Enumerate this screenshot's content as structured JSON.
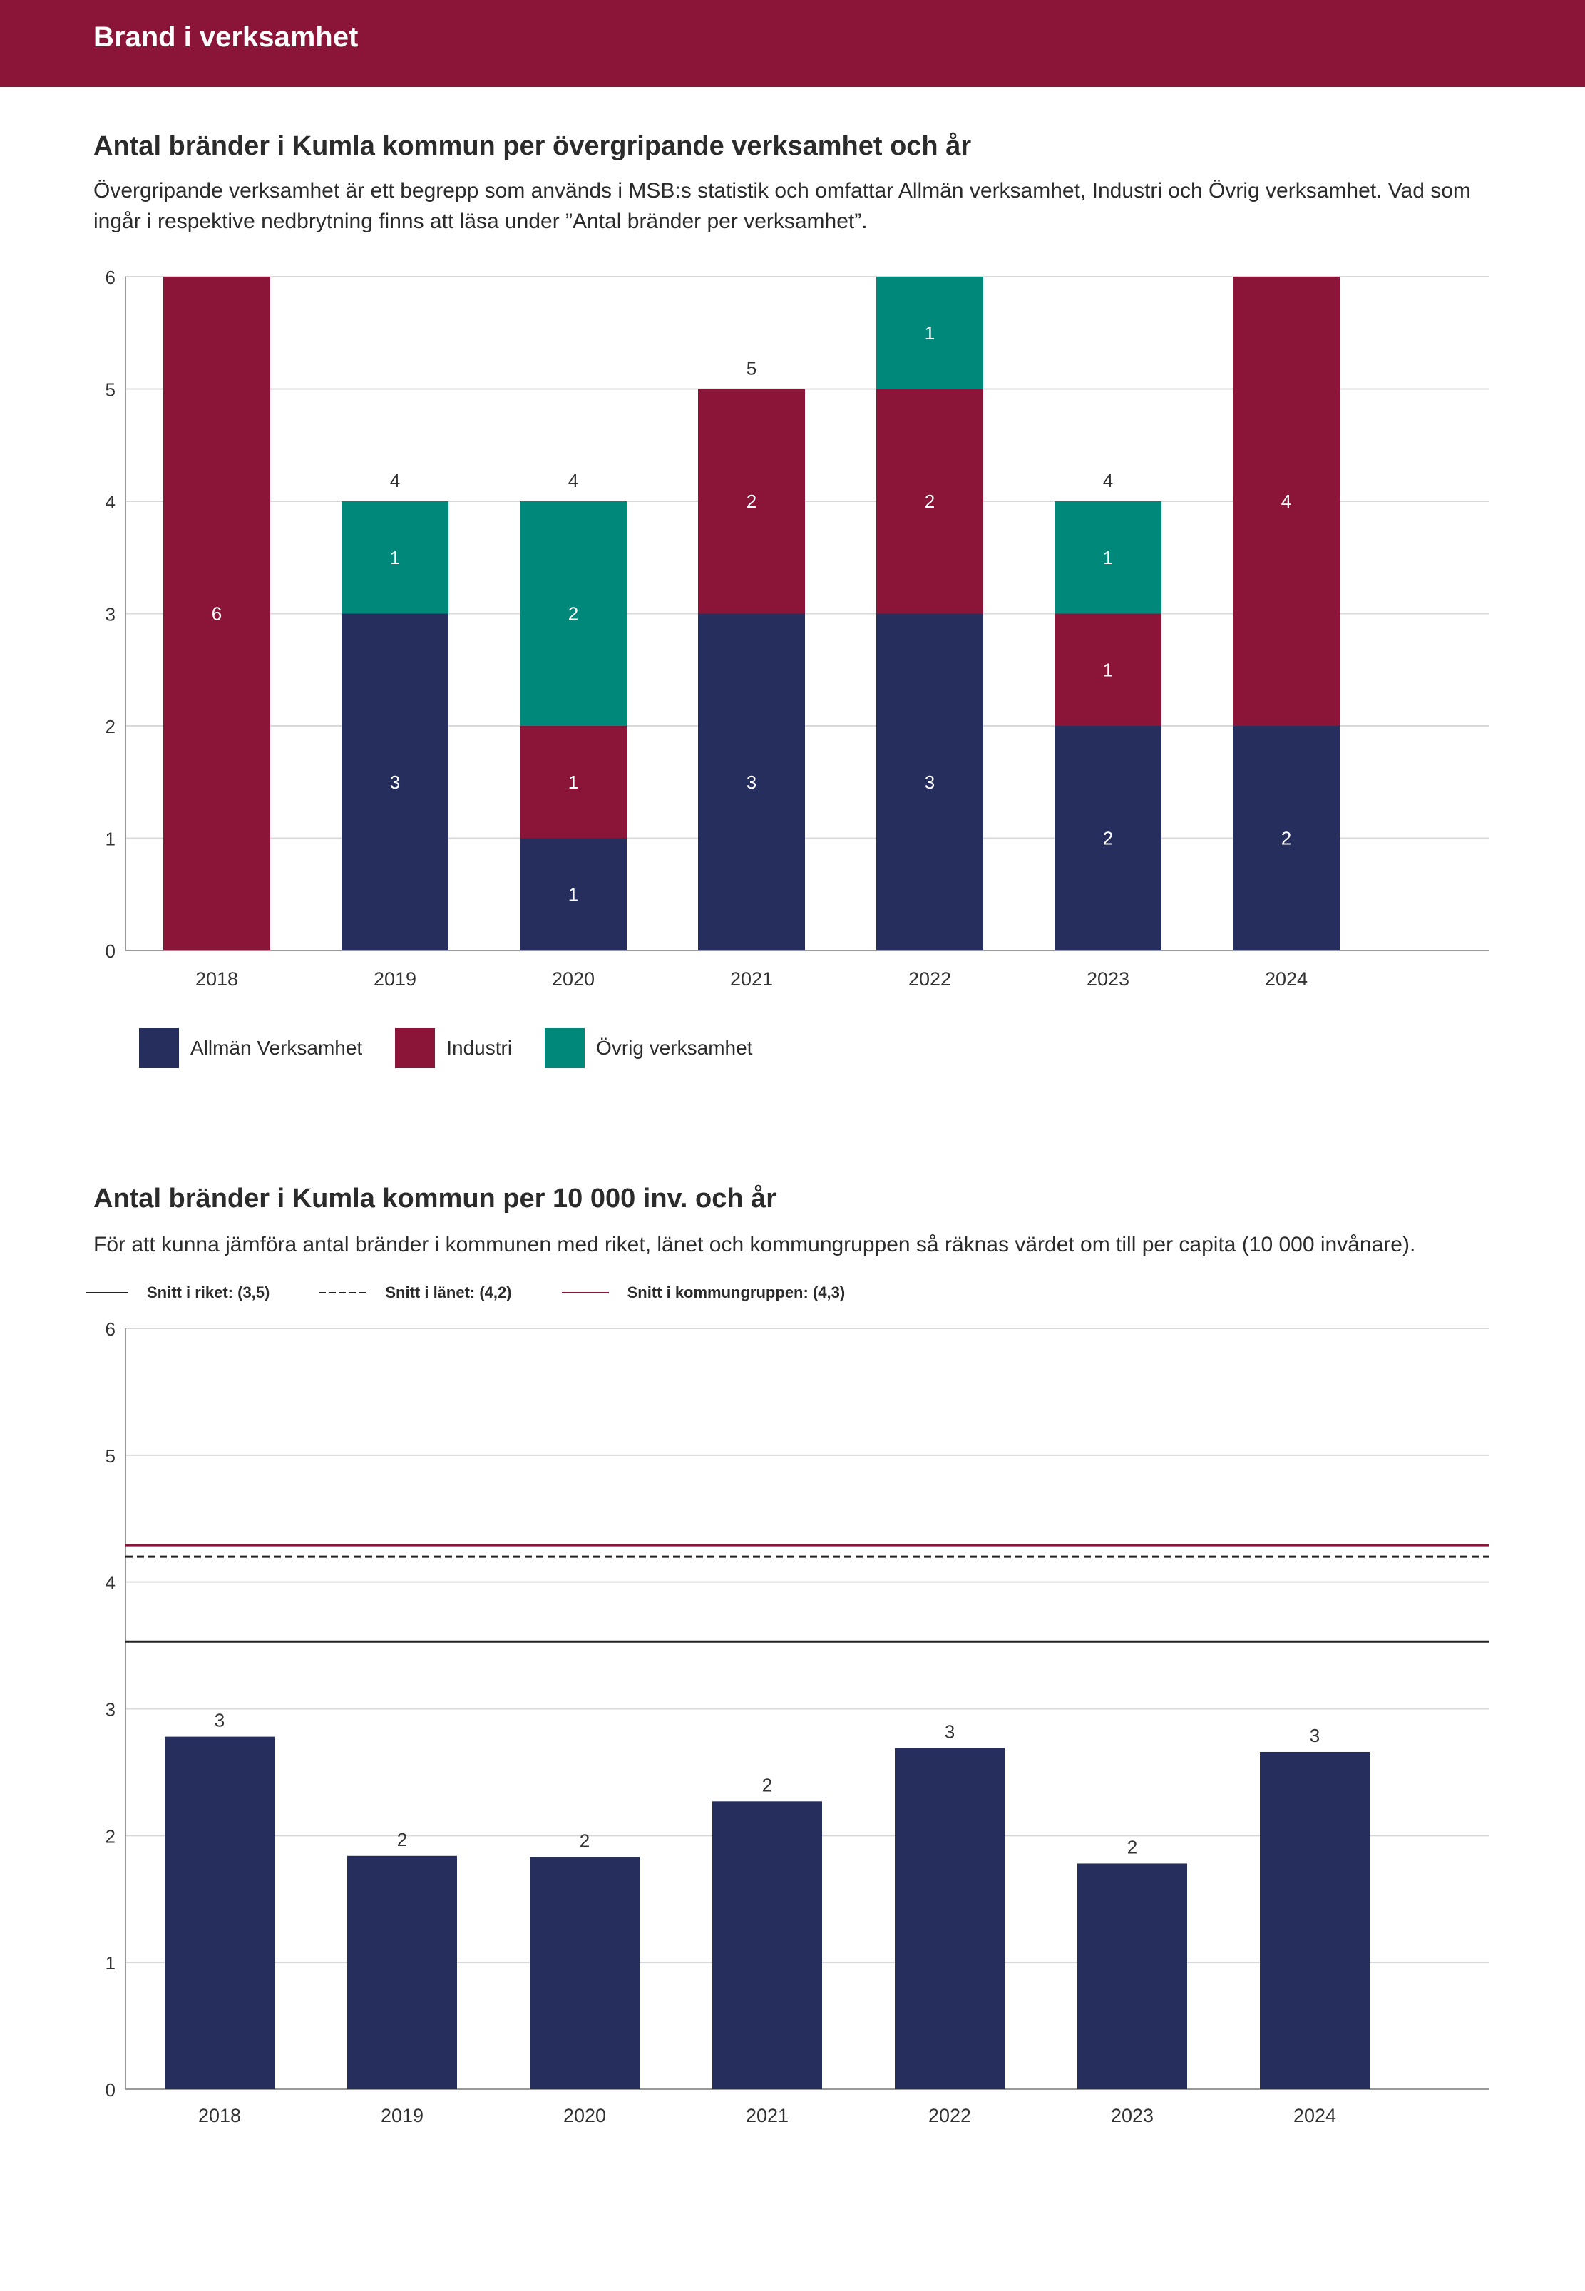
{
  "header": {
    "title": "Brand i verksamhet"
  },
  "section1": {
    "title": "Antal bränder i Kumla kommun per övergripande verksamhet och år",
    "description": "Övergripande verksamhet är ett begrepp som används i MSB:s statistik och omfattar Allmän verksamhet, Industri och Övrig verksamhet. Vad som ingår i respektive nedbrytning finns att läsa under ”Antal bränder per verksamhet”."
  },
  "section2": {
    "title": "Antal bränder i Kumla kommun per 10 000 inv. och år",
    "description": "För att kunna jämföra antal bränder i kommunen med riket, länet och kommungruppen så räknas värdet om till per capita (10 000 invånare)."
  },
  "colors": {
    "header": "#8b1538",
    "allman": "#262e5e",
    "industri": "#8b1538",
    "ovrig": "#00897b",
    "grid": "#d9d9d9",
    "axis": "#999999",
    "kommungrupp_line": "#8b1538"
  },
  "chart_data": [
    {
      "type": "bar",
      "stacked": true,
      "categories": [
        "2018",
        "2019",
        "2020",
        "2021",
        "2022",
        "2023",
        "2024"
      ],
      "series": [
        {
          "name": "Allmän Verksamhet",
          "values": [
            0,
            3,
            1,
            3,
            3,
            2,
            2
          ]
        },
        {
          "name": "Industri",
          "values": [
            6,
            0,
            1,
            2,
            2,
            1,
            4
          ]
        },
        {
          "name": "Övrig verksamhet",
          "values": [
            0,
            1,
            2,
            0,
            1,
            1,
            0
          ]
        }
      ],
      "totals": [
        6,
        4,
        4,
        5,
        6,
        4,
        6
      ],
      "total_labels": [
        "",
        "4",
        "4",
        "5",
        "",
        "4",
        ""
      ],
      "ylim": [
        0,
        6
      ],
      "yticks": [
        "0",
        "1",
        "2",
        "3",
        "4",
        "5",
        "6"
      ],
      "legend": [
        "Allmän Verksamhet",
        "Industri",
        "Övrig verksamhet"
      ],
      "legend_position": "bottom-left"
    },
    {
      "type": "bar",
      "categories": [
        "2018",
        "2019",
        "2020",
        "2021",
        "2022",
        "2023",
        "2024"
      ],
      "values": [
        2.78,
        1.84,
        1.83,
        2.27,
        2.69,
        1.78,
        2.66
      ],
      "value_labels": [
        "3",
        "2",
        "2",
        "2",
        "3",
        "2",
        "3"
      ],
      "ylim": [
        0,
        6
      ],
      "yticks": [
        "0",
        "1",
        "2",
        "3",
        "4",
        "5",
        "6"
      ],
      "reference_lines": [
        {
          "name": "Snitt i riket: (3,5)",
          "value": 3.53,
          "style": "solid",
          "color": "#222222"
        },
        {
          "name": "Snitt i länet: (4,2)",
          "value": 4.2,
          "style": "dashed",
          "color": "#222222"
        },
        {
          "name": "Snitt i kommungruppen: (4,3)",
          "value": 4.29,
          "style": "solid",
          "color": "#8b1538"
        }
      ],
      "legend_position": "top-left"
    }
  ]
}
